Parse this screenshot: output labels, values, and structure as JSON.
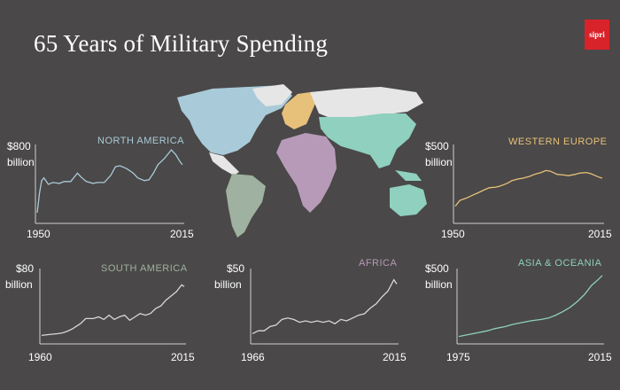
{
  "title": "65 Years of Military Spending",
  "logo_text": "sipri",
  "colors": {
    "background": "#4a4848",
    "axis": "#d0d0d0",
    "north_america": "#a9cbd9",
    "south_america": "#9fb1a0",
    "western_europe": "#e7c07a",
    "africa": "#b79ab8",
    "asia_oceania": "#8fd0be",
    "other": "#e6e6e6"
  },
  "chart_data": [
    {
      "id": "north-america",
      "type": "line",
      "title": "NORTH AMERICA",
      "y_label_value": "$800",
      "y_label_unit": "billion",
      "x_start_label": "1950",
      "x_end_label": "2015",
      "ylim": [
        0,
        800
      ],
      "color": "#a9cbd9",
      "x": [
        1950,
        1951,
        1952,
        1953,
        1955,
        1957,
        1960,
        1962,
        1965,
        1968,
        1970,
        1972,
        1975,
        1977,
        1980,
        1983,
        1985,
        1987,
        1990,
        1993,
        1995,
        1998,
        2000,
        2002,
        2004,
        2007,
        2010,
        2012,
        2014,
        2015
      ],
      "values": [
        95,
        300,
        440,
        470,
        400,
        420,
        410,
        430,
        430,
        520,
        470,
        430,
        410,
        420,
        420,
        500,
        590,
        600,
        570,
        520,
        470,
        440,
        450,
        520,
        610,
        680,
        770,
        720,
        640,
        610
      ]
    },
    {
      "id": "western-europe",
      "type": "line",
      "title": "WESTERN EUROPE",
      "y_label_value": "$500",
      "y_label_unit": "billion",
      "x_start_label": "1950",
      "x_end_label": "2015",
      "ylim": [
        0,
        500
      ],
      "color": "#e7c07a",
      "x": [
        1950,
        1952,
        1955,
        1958,
        1960,
        1963,
        1965,
        1968,
        1970,
        1973,
        1975,
        1978,
        1980,
        1983,
        1985,
        1988,
        1990,
        1992,
        1995,
        1998,
        2000,
        2003,
        2005,
        2008,
        2010,
        2012,
        2014,
        2015
      ],
      "values": [
        120,
        165,
        185,
        210,
        225,
        250,
        265,
        270,
        280,
        300,
        320,
        335,
        340,
        355,
        370,
        385,
        400,
        395,
        370,
        365,
        360,
        370,
        380,
        385,
        375,
        360,
        345,
        340
      ]
    },
    {
      "id": "south-america",
      "type": "line",
      "title": "SOUTH AMERICA",
      "y_label_value": "$80",
      "y_label_unit": "billion",
      "x_start_label": "1960",
      "x_end_label": "2015",
      "ylim": [
        0,
        80
      ],
      "color": "#d8d8d8",
      "x": [
        1960,
        1963,
        1966,
        1968,
        1970,
        1972,
        1975,
        1977,
        1980,
        1982,
        1984,
        1986,
        1988,
        1990,
        1992,
        1994,
        1996,
        1998,
        2000,
        2002,
        2004,
        2006,
        2008,
        2010,
        2012,
        2014,
        2015
      ],
      "values": [
        8,
        9,
        10,
        11,
        13,
        16,
        22,
        28,
        28,
        30,
        27,
        32,
        27,
        30,
        32,
        26,
        30,
        34,
        32,
        34,
        40,
        43,
        50,
        55,
        60,
        68,
        66
      ]
    },
    {
      "id": "africa",
      "type": "line",
      "title": "AFRICA",
      "y_label_value": "$50",
      "y_label_unit": "billion",
      "x_start_label": "1966",
      "x_end_label": "2015",
      "ylim": [
        0,
        50
      ],
      "color": "#d8d8d8",
      "x": [
        1966,
        1968,
        1970,
        1972,
        1974,
        1976,
        1978,
        1980,
        1982,
        1984,
        1986,
        1988,
        1990,
        1992,
        1994,
        1996,
        1998,
        2000,
        2002,
        2004,
        2006,
        2008,
        2010,
        2012,
        2014,
        2015
      ],
      "values": [
        6,
        8,
        8,
        11,
        12,
        16,
        17,
        16,
        14,
        15,
        14,
        15,
        14,
        15,
        13,
        16,
        15,
        17,
        19,
        20,
        24,
        27,
        32,
        36,
        44,
        41
      ]
    },
    {
      "id": "asia-oceania",
      "type": "line",
      "title": "ASIA & OCEANIA",
      "y_label_value": "$500",
      "y_label_unit": "billion",
      "x_start_label": "1975",
      "x_end_label": "2015",
      "ylim": [
        0,
        500
      ],
      "color": "#8fd0be",
      "x": [
        1975,
        1977,
        1980,
        1983,
        1985,
        1988,
        1990,
        1992,
        1995,
        1998,
        2000,
        2002,
        2004,
        2006,
        2008,
        2010,
        2012,
        2014,
        2015
      ],
      "values": [
        40,
        50,
        65,
        80,
        95,
        110,
        125,
        135,
        150,
        160,
        170,
        190,
        215,
        245,
        285,
        335,
        400,
        445,
        470
      ]
    }
  ]
}
